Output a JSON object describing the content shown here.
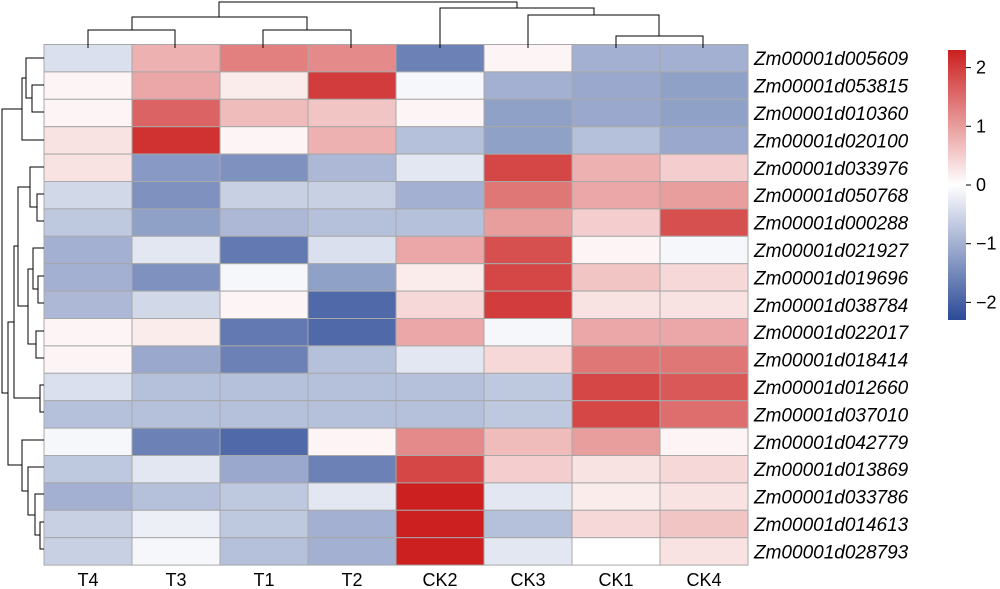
{
  "chart_data": {
    "type": "heatmap",
    "columns": [
      "T4",
      "T3",
      "T1",
      "T2",
      "CK2",
      "CK3",
      "CK1",
      "CK4"
    ],
    "rows": [
      "Zm00001d005609",
      "Zm00001d053815",
      "Zm00001d010360",
      "Zm00001d020100",
      "Zm00001d033976",
      "Zm00001d050768",
      "Zm00001d000288",
      "Zm00001d021927",
      "Zm00001d019696",
      "Zm00001d038784",
      "Zm00001d022017",
      "Zm00001d018414",
      "Zm00001d012660",
      "Zm00001d037010",
      "Zm00001d042779",
      "Zm00001d013869",
      "Zm00001d033786",
      "Zm00001d014613",
      "Zm00001d028793"
    ],
    "values": [
      [
        -0.4,
        0.8,
        1.3,
        1.2,
        -1.6,
        0.1,
        -1.0,
        -1.0
      ],
      [
        0.1,
        0.9,
        0.2,
        2.0,
        -0.1,
        -1.0,
        -1.1,
        -1.2
      ],
      [
        0.1,
        1.6,
        0.7,
        0.6,
        0.1,
        -1.2,
        -1.1,
        -1.2
      ],
      [
        0.3,
        2.1,
        0.1,
        0.8,
        -0.8,
        -1.2,
        -0.8,
        -1.1
      ],
      [
        0.3,
        -1.3,
        -1.4,
        -0.9,
        -0.3,
        1.9,
        0.8,
        0.5
      ],
      [
        -0.5,
        -1.4,
        -0.6,
        -0.6,
        -1.0,
        1.4,
        0.9,
        1.0
      ],
      [
        -0.7,
        -1.2,
        -0.9,
        -0.8,
        -0.8,
        1.0,
        0.5,
        1.8
      ],
      [
        -1.0,
        -0.3,
        -1.7,
        -0.4,
        0.9,
        1.8,
        0.1,
        -0.1
      ],
      [
        -1.0,
        -1.4,
        -0.1,
        -1.2,
        0.2,
        1.9,
        0.6,
        0.4
      ],
      [
        -0.9,
        -0.5,
        0.1,
        -1.9,
        0.4,
        2.0,
        0.3,
        0.3
      ],
      [
        0.1,
        0.2,
        -1.7,
        -1.9,
        0.9,
        -0.1,
        0.9,
        0.9
      ],
      [
        0.1,
        -1.1,
        -1.6,
        -0.8,
        -0.3,
        0.4,
        1.4,
        1.4
      ],
      [
        -0.4,
        -0.8,
        -0.8,
        -0.8,
        -0.8,
        -0.7,
        1.9,
        1.7
      ],
      [
        -0.8,
        -0.8,
        -0.8,
        -0.8,
        -0.8,
        -0.7,
        1.9,
        1.5
      ],
      [
        -0.1,
        -1.6,
        -1.9,
        0.1,
        1.2,
        0.7,
        1.0,
        0.1
      ],
      [
        -0.7,
        -0.3,
        -1.1,
        -1.6,
        1.9,
        0.5,
        0.3,
        0.4
      ],
      [
        -1.0,
        -0.8,
        -0.7,
        -0.3,
        2.3,
        -0.3,
        0.2,
        0.3
      ],
      [
        -0.6,
        -0.2,
        -0.7,
        -1.0,
        2.3,
        -0.8,
        0.4,
        0.6
      ],
      [
        -0.6,
        -0.1,
        -0.8,
        -1.0,
        2.3,
        -0.3,
        0.0,
        0.3
      ]
    ],
    "color_scale": {
      "min": -2.3,
      "max": 2.3,
      "low_color": "#2b4a96",
      "mid_color": "#ffffff",
      "high_color": "#cc1f1f",
      "ticks": [
        2,
        1,
        0,
        -1,
        -2
      ],
      "tick_labels": [
        "2",
        "1",
        "0",
        "−1",
        "−2"
      ]
    },
    "legend_position": "right",
    "cell_border_color": "#a8a8a8",
    "dendrogram_color": "#000000"
  }
}
